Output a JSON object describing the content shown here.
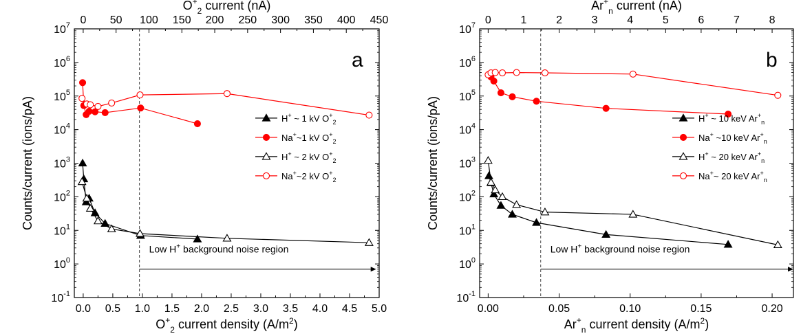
{
  "chart_data": [
    {
      "type": "scatter",
      "panel_label": "a",
      "xlabel_main": "O",
      "xlabel_sub": "2",
      "xlabel_sup": "+",
      "xlabel_rest": " current density (A/m",
      "xlabel_unit_sup": "2",
      "xlabel_close": ")",
      "x2label_main": "O",
      "x2label_sub": "2",
      "x2label_sup": "+",
      "x2label_rest": " current (nA)",
      "ylabel": "Counts/current (ions/pA)",
      "xlim": [
        -0.15,
        5.0
      ],
      "x2lim": [
        -13.5,
        450
      ],
      "ylim_exp": [
        -1,
        7
      ],
      "y_log": true,
      "xticks": [
        "0.0",
        "0.5",
        "1.0",
        "1.5",
        "2.0",
        "2.5",
        "3.0",
        "3.5",
        "4.0",
        "4.5",
        "5.0"
      ],
      "xtick_values": [
        0.0,
        0.5,
        1.0,
        1.5,
        2.0,
        2.5,
        3.0,
        3.5,
        4.0,
        4.5,
        5.0
      ],
      "x2ticks": [
        "0",
        "50",
        "100",
        "150",
        "200",
        "250",
        "300",
        "350",
        "400",
        "450"
      ],
      "x2tick_values": [
        0,
        50,
        100,
        150,
        200,
        250,
        300,
        350,
        400,
        450
      ],
      "vline_x": 0.95,
      "note": "Low H",
      "note_sup": "+",
      "note_rest": " background noise region",
      "note_arrow_from": 0.95,
      "note_arrow_to": 4.95,
      "legend_position": "right",
      "series": [
        {
          "prefix": "H",
          "sup": "+",
          "rest": " ~ 1 kV O",
          "ion_sub": "2",
          "ion_sup": "+",
          "color": "#000000",
          "marker": "triangle",
          "filled": true,
          "x": [
            -0.01,
            0.01,
            0.05,
            0.1,
            0.2,
            0.37,
            0.97,
            1.93
          ],
          "y": [
            1000,
            340,
            70,
            90,
            33,
            16,
            7,
            5.5
          ]
        },
        {
          "prefix": "Na",
          "sup": "+",
          "rest": "~1 kV O",
          "ion_sub": "2",
          "ion_sup": "+",
          "color": "#ff0000",
          "marker": "circle",
          "filled": true,
          "x": [
            -0.01,
            0.01,
            0.05,
            0.1,
            0.2,
            0.37,
            0.97,
            1.93
          ],
          "y": [
            250000,
            52000,
            28000,
            35000,
            34000,
            32000,
            44000,
            15000
          ]
        },
        {
          "prefix": "H",
          "sup": "+",
          "rest": " ~ 2 kV O",
          "ion_sub": "2",
          "ion_sup": "+",
          "color": "#000000",
          "marker": "triangle",
          "filled": false,
          "x": [
            -0.02,
            0.06,
            0.12,
            0.25,
            0.48,
            0.96,
            2.43,
            4.83
          ],
          "y": [
            280,
            90,
            45,
            19,
            11,
            8,
            5.8,
            4.3
          ]
        },
        {
          "prefix": "Na",
          "sup": "+",
          "rest": "~2 kV O",
          "ion_sub": "2",
          "ion_sup": "+",
          "color": "#ff0000",
          "marker": "circle",
          "filled": false,
          "x": [
            -0.02,
            0.06,
            0.12,
            0.25,
            0.48,
            0.96,
            2.43,
            4.83
          ],
          "y": [
            85000,
            58000,
            55000,
            49000,
            62000,
            108000,
            118000,
            27000
          ]
        }
      ]
    },
    {
      "type": "scatter",
      "panel_label": "b",
      "xlabel_main": "Ar",
      "xlabel_sub": "n",
      "xlabel_sup": "+",
      "xlabel_rest": " current density (A/m",
      "xlabel_unit_sup": "2",
      "xlabel_close": ")",
      "x2label_main": "Ar",
      "x2label_sub": "n",
      "x2label_sup": "+",
      "x2label_rest": " current (nA)",
      "ylabel": "Counts/current (ions/pA)",
      "xlim": [
        -0.006,
        0.215
      ],
      "x2lim": [
        -0.24,
        8.6
      ],
      "ylim_exp": [
        -1,
        7
      ],
      "y_log": true,
      "xticks": [
        "0.00",
        "0.05",
        "0.10",
        "0.15",
        "0.20"
      ],
      "xtick_values": [
        0.0,
        0.05,
        0.1,
        0.15,
        0.2
      ],
      "x2ticks": [
        "0",
        "1",
        "2",
        "3",
        "4",
        "5",
        "6",
        "7",
        "8"
      ],
      "x2tick_values": [
        0,
        1,
        2,
        3,
        4,
        5,
        6,
        7,
        8
      ],
      "vline_x": 0.037,
      "note": "Low H",
      "note_sup": "+",
      "note_rest": " background noise region",
      "note_arrow_from": 0.037,
      "note_arrow_to": 0.215,
      "legend_position": "right",
      "series": [
        {
          "prefix": "H",
          "sup": "+",
          "rest": " ~  10 keV Ar",
          "ion_sub": "n",
          "ion_sup": "+",
          "color": "#000000",
          "marker": "triangle",
          "filled": true,
          "x": [
            0.0005,
            0.002,
            0.004,
            0.009,
            0.017,
            0.034,
            0.083,
            0.169
          ],
          "y": [
            420,
            260,
            120,
            55,
            30,
            17,
            7.5,
            3.8
          ]
        },
        {
          "prefix": "Na",
          "sup": "+",
          "rest": " ~10 keV Ar",
          "ion_sub": "n",
          "ion_sup": "+",
          "color": "#ff0000",
          "marker": "circle",
          "filled": true,
          "x": [
            0.0005,
            0.002,
            0.004,
            0.009,
            0.017,
            0.034,
            0.083,
            0.169
          ],
          "y": [
            440000,
            370000,
            280000,
            125000,
            95000,
            70000,
            43000,
            29000
          ]
        },
        {
          "prefix": "H",
          "sup": "+",
          "rest": " ~  20 keV Ar",
          "ion_sub": "n",
          "ion_sup": "+",
          "color": "#000000",
          "marker": "triangle",
          "filled": false,
          "x": [
            0.0,
            0.002,
            0.005,
            0.01,
            0.02,
            0.04,
            0.102,
            0.204
          ],
          "y": [
            1200,
            270,
            160,
            100,
            58,
            35,
            30,
            3.7
          ]
        },
        {
          "prefix": "Na",
          "sup": "+",
          "rest": "~ 20 keV Ar",
          "ion_sub": "n",
          "ion_sup": "+",
          "color": "#ff0000",
          "marker": "circle",
          "filled": false,
          "x": [
            0.0,
            0.002,
            0.005,
            0.01,
            0.02,
            0.04,
            0.102,
            0.204
          ],
          "y": [
            430000,
            490000,
            500000,
            490000,
            500000,
            490000,
            450000,
            105000
          ]
        }
      ]
    }
  ]
}
